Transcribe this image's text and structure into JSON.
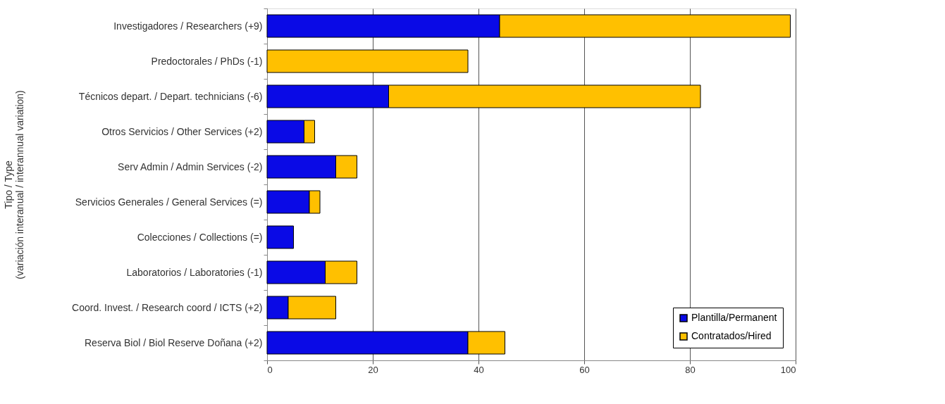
{
  "chart_data": {
    "type": "bar",
    "orientation": "horizontal",
    "stacked": true,
    "ylabel": "Tipo / Type\n(variación interanual / interannual variation)",
    "categories": [
      "Investigadores / Researchers (+9)",
      "Predoctorales / PhDs (-1)",
      "Técnicos depart. / Depart. technicians (-6)",
      "Otros Servicios / Other Services (+2)",
      "Serv Admin / Admin Services (-2)",
      "Servicios Generales / General Services (=)",
      "Colecciones / Collections (=)",
      "Laboratorios / Laboratories (-1)",
      "Coord. Invest. / Research coord / ICTS (+2)",
      "Reserva Biol / Biol Reserve Doñana (+2)"
    ],
    "series": [
      {
        "name": "Plantilla/Permanent",
        "color": "#0a0ae6",
        "values": [
          44,
          0,
          23,
          7,
          13,
          8,
          5,
          11,
          4,
          38
        ]
      },
      {
        "name": "Contratados/Hired",
        "color": "#ffc000",
        "values": [
          55,
          38,
          59,
          2,
          4,
          2,
          0,
          6,
          9,
          7
        ]
      }
    ],
    "xlim": [
      0,
      100
    ],
    "xticks": [
      0,
      20,
      40,
      60,
      80,
      100
    ],
    "grid": "x",
    "legend": "bottom right"
  }
}
